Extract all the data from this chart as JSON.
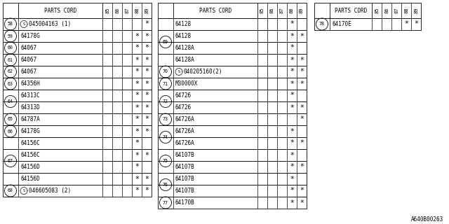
{
  "bg_color": "#ffffff",
  "col_headers": [
    "85",
    "86",
    "87",
    "88",
    "89"
  ],
  "tables": [
    {
      "col": 0,
      "title": "PARTS CORD",
      "rows": [
        {
          "ref": "58",
          "part": "Ⓞ045004163 (1)",
          "marks": [
            "",
            "",
            "",
            "",
            "*"
          ]
        },
        {
          "ref": "59",
          "part": "64178G",
          "marks": [
            "",
            "",
            "",
            "*",
            "*"
          ]
        },
        {
          "ref": "60",
          "part": "64067",
          "marks": [
            "",
            "",
            "",
            "*",
            "*"
          ]
        },
        {
          "ref": "61",
          "part": "64067",
          "marks": [
            "",
            "",
            "",
            "*",
            "*"
          ]
        },
        {
          "ref": "62",
          "part": "64067",
          "marks": [
            "",
            "",
            "",
            "*",
            "*"
          ]
        },
        {
          "ref": "63",
          "part": "64356H",
          "marks": [
            "",
            "",
            "",
            "*",
            "*"
          ]
        },
        {
          "ref": "64",
          "part": "64313C",
          "marks": [
            "",
            "",
            "",
            "*",
            "*"
          ],
          "span_start": true,
          "span_rows": 2
        },
        {
          "ref": "",
          "part": "64313D",
          "marks": [
            "",
            "",
            "",
            "*",
            "*"
          ],
          "span_cont": true
        },
        {
          "ref": "65",
          "part": "64787A",
          "marks": [
            "",
            "",
            "",
            "*",
            "*"
          ]
        },
        {
          "ref": "66",
          "part": "64178G",
          "marks": [
            "",
            "",
            "",
            "*",
            "*"
          ]
        },
        {
          "ref": "67",
          "part": "64156C",
          "marks": [
            "",
            "",
            "",
            "*",
            ""
          ],
          "span_start": true,
          "span_rows": 4
        },
        {
          "ref": "",
          "part": "64156C",
          "marks": [
            "",
            "",
            "",
            "*",
            "*"
          ],
          "span_cont": true
        },
        {
          "ref": "",
          "part": "64156D",
          "marks": [
            "",
            "",
            "",
            "*",
            ""
          ],
          "span_cont": true
        },
        {
          "ref": "",
          "part": "64156D",
          "marks": [
            "",
            "",
            "",
            "*",
            "*"
          ],
          "span_cont": true
        },
        {
          "ref": "68",
          "part": "Ⓞ046605083 (2)",
          "marks": [
            "",
            "",
            "",
            "*",
            "*"
          ]
        }
      ]
    },
    {
      "col": 1,
      "title": "PARTS CORD",
      "rows": [
        {
          "ref": "69",
          "part": "64128",
          "marks": [
            "",
            "",
            "",
            "*",
            ""
          ],
          "span_start": true,
          "span_rows": 4
        },
        {
          "ref": "",
          "part": "64128",
          "marks": [
            "",
            "",
            "",
            "*",
            "*"
          ],
          "span_cont": true
        },
        {
          "ref": "",
          "part": "64128A",
          "marks": [
            "",
            "",
            "",
            "*",
            ""
          ],
          "span_cont": true
        },
        {
          "ref": "",
          "part": "64128A",
          "marks": [
            "",
            "",
            "",
            "*",
            "*"
          ],
          "span_cont": true
        },
        {
          "ref": "70",
          "part": "Ⓞ040205160(2)",
          "marks": [
            "",
            "",
            "",
            "*",
            "*"
          ]
        },
        {
          "ref": "71",
          "part": "M30000X",
          "marks": [
            "",
            "",
            "",
            "*",
            "*"
          ]
        },
        {
          "ref": "72",
          "part": "64726",
          "marks": [
            "",
            "",
            "",
            "*",
            ""
          ],
          "span_start": true,
          "span_rows": 2
        },
        {
          "ref": "",
          "part": "64726",
          "marks": [
            "",
            "",
            "",
            "*",
            "*"
          ],
          "span_cont": true
        },
        {
          "ref": "73",
          "part": "64726A",
          "marks": [
            "",
            "",
            "",
            "",
            "*"
          ]
        },
        {
          "ref": "74",
          "part": "64726A",
          "marks": [
            "",
            "",
            "",
            "*",
            ""
          ],
          "span_start": true,
          "span_rows": 2
        },
        {
          "ref": "",
          "part": "64726A",
          "marks": [
            "",
            "",
            "",
            "*",
            "*"
          ],
          "span_cont": true
        },
        {
          "ref": "75",
          "part": "64107B",
          "marks": [
            "",
            "",
            "",
            "*",
            ""
          ],
          "span_start": true,
          "span_rows": 2
        },
        {
          "ref": "",
          "part": "64107B",
          "marks": [
            "",
            "",
            "",
            "*",
            "*"
          ],
          "span_cont": true
        },
        {
          "ref": "76",
          "part": "64107B",
          "marks": [
            "",
            "",
            "",
            "*",
            ""
          ],
          "span_start": true,
          "span_rows": 2
        },
        {
          "ref": "",
          "part": "64107B",
          "marks": [
            "",
            "",
            "",
            "*",
            "*"
          ],
          "span_cont": true
        },
        {
          "ref": "77",
          "part": "64170B",
          "marks": [
            "",
            "",
            "",
            "*",
            "*"
          ]
        }
      ]
    },
    {
      "col": 2,
      "title": "PARTS CORD",
      "rows": [
        {
          "ref": "78",
          "part": "64170E",
          "marks": [
            "",
            "",
            "",
            "*",
            "*"
          ]
        }
      ]
    }
  ],
  "footnote": "A640B00263",
  "font_size": 5.5,
  "header_font_size": 5.5,
  "col_header_font_size": 5.0
}
